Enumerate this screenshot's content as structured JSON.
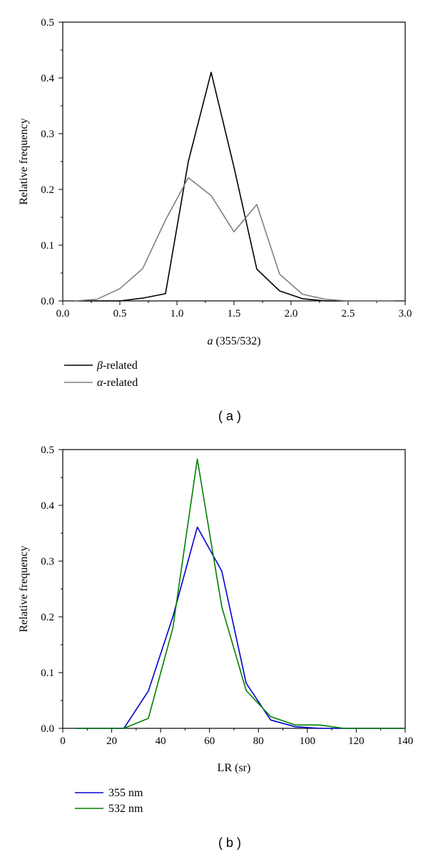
{
  "chart_data": [
    {
      "type": "line",
      "caption": "( a )",
      "xlabel_italic": "a",
      "xlabel_rest": " (355/532)",
      "ylabel": "Relative frequency",
      "xlim": [
        0.0,
        3.0
      ],
      "ylim": [
        0.0,
        0.5
      ],
      "xticks": [
        "0.0",
        "0.5",
        "1.0",
        "1.5",
        "2.0",
        "2.5",
        "3.0"
      ],
      "yticks": [
        "0.0",
        "0.1",
        "0.2",
        "0.3",
        "0.4",
        "0.5"
      ],
      "legend_position": "bottom-left, below axes",
      "series": [
        {
          "name_italic": "β",
          "name_rest": "-related",
          "color": "#000000",
          "x": [
            0.1,
            0.3,
            0.5,
            0.7,
            0.9,
            1.1,
            1.3,
            1.5,
            1.7,
            1.9,
            2.1,
            2.3,
            2.5,
            2.7,
            2.9
          ],
          "y": [
            0.0,
            0.0,
            0.0,
            0.005,
            0.013,
            0.25,
            0.41,
            0.24,
            0.057,
            0.018,
            0.004,
            0.0,
            0.0,
            0.0,
            0.0
          ]
        },
        {
          "name_italic": "α",
          "name_rest": "-related",
          "color": "#808080",
          "x": [
            0.1,
            0.3,
            0.5,
            0.7,
            0.9,
            1.1,
            1.3,
            1.5,
            1.7,
            1.9,
            2.1,
            2.3,
            2.5,
            2.7,
            2.9
          ],
          "y": [
            0.0,
            0.003,
            0.022,
            0.058,
            0.145,
            0.221,
            0.189,
            0.124,
            0.173,
            0.048,
            0.012,
            0.003,
            0.0,
            0.0,
            0.0
          ]
        }
      ]
    },
    {
      "type": "line",
      "caption": "( b )",
      "xlabel_italic": "",
      "xlabel_rest": "LR (sr)",
      "ylabel": "Relative frequency",
      "xlim": [
        0,
        140
      ],
      "ylim": [
        0.0,
        0.5
      ],
      "xticks": [
        "0",
        "20",
        "40",
        "60",
        "80",
        "100",
        "120",
        "140"
      ],
      "yticks": [
        "0.0",
        "0.1",
        "0.2",
        "0.3",
        "0.4",
        "0.5"
      ],
      "legend_position": "bottom-left, below axes",
      "series": [
        {
          "name_italic": "",
          "name_rest": "355 nm",
          "color": "#0000cc",
          "x": [
            5,
            15,
            25,
            35,
            45,
            55,
            65,
            75,
            85,
            95,
            105,
            115,
            125,
            135,
            140
          ],
          "y": [
            0.0,
            0.0,
            0.0,
            0.067,
            0.2,
            0.361,
            0.282,
            0.081,
            0.015,
            0.003,
            0.0,
            0.0,
            0.0,
            0.0,
            0.0
          ]
        },
        {
          "name_italic": "",
          "name_rest": "532 nm",
          "color": "#008000",
          "x": [
            5,
            15,
            25,
            35,
            45,
            55,
            65,
            75,
            85,
            95,
            105,
            115,
            125,
            135,
            140
          ],
          "y": [
            0.0,
            0.0,
            0.0,
            0.018,
            0.18,
            0.483,
            0.218,
            0.068,
            0.021,
            0.006,
            0.006,
            0.0,
            0.0,
            0.0,
            0.0
          ]
        }
      ]
    }
  ]
}
